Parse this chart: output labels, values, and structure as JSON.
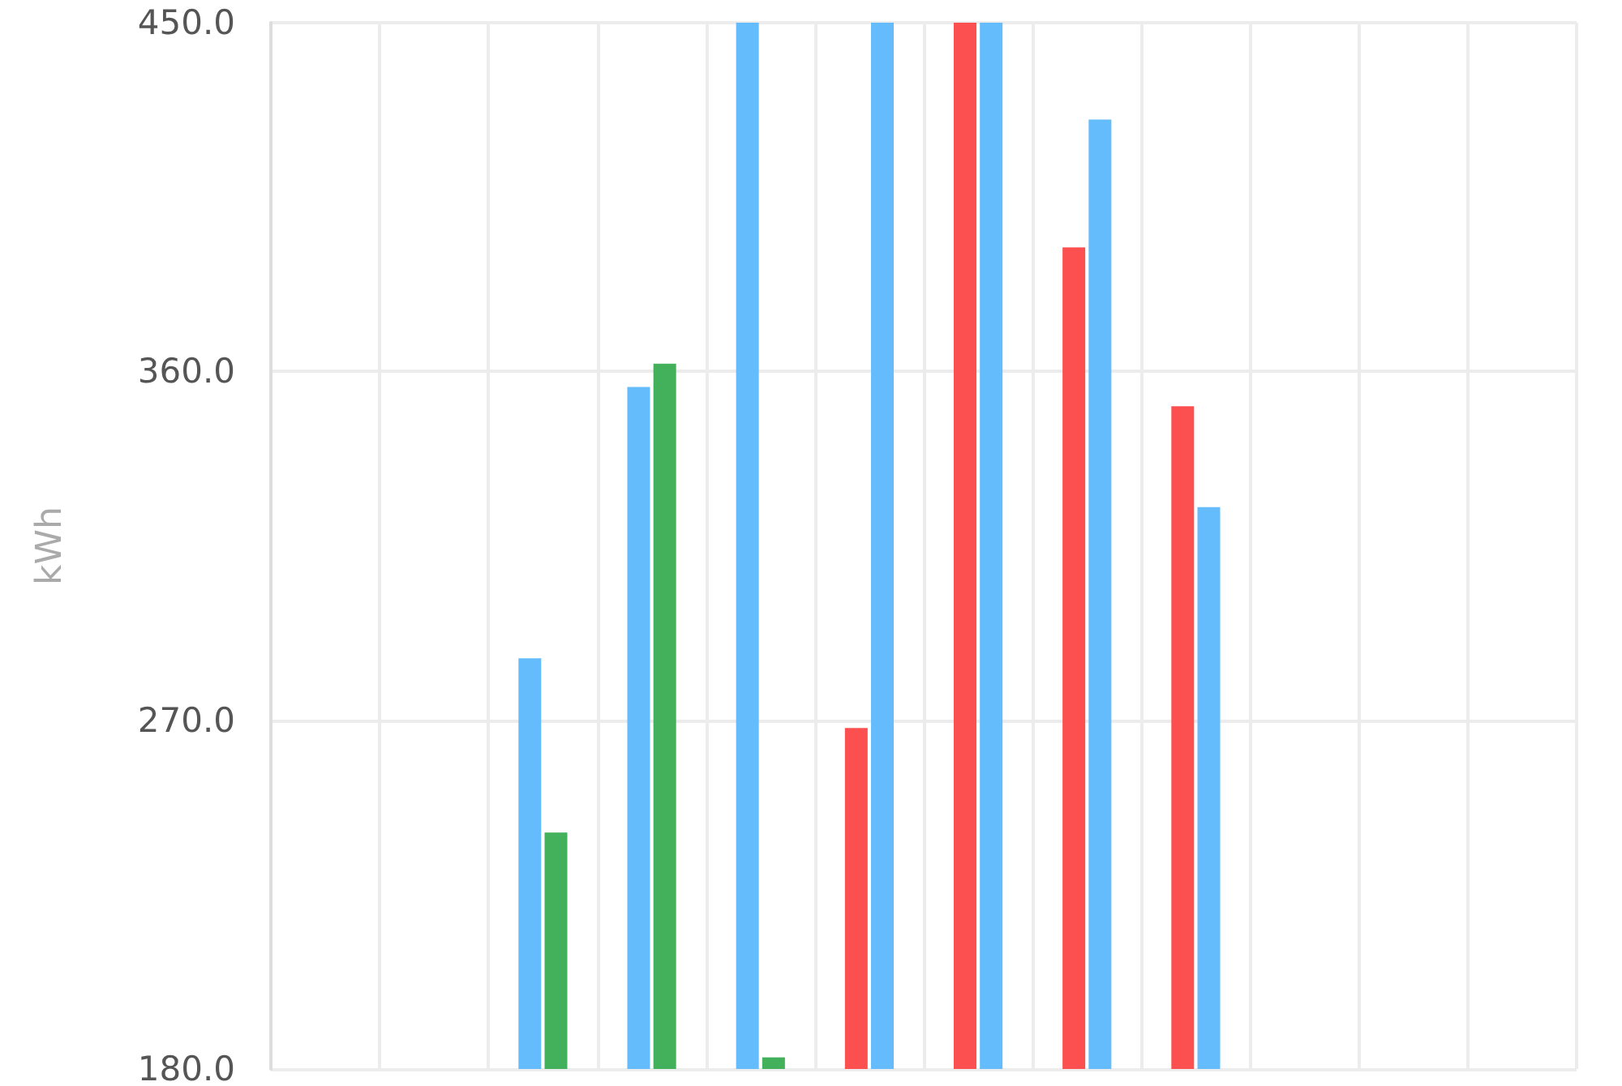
{
  "chart_data": {
    "type": "bar",
    "ylabel": "kWh",
    "categories": [
      null,
      null,
      null,
      null,
      null,
      null,
      null,
      null,
      null,
      null,
      null,
      null
    ],
    "series": [
      {
        "colors": [
          "#64bcfc",
          "#64bcfc",
          "#64bcfc",
          "#64bcfc",
          "#64bcfc",
          "#fc5050",
          "#fc5050",
          "#fc5050",
          "#fc5050",
          "#64bcfc",
          "#64bcfc",
          "#64bcfc"
        ],
        "values": [
          null,
          null,
          286,
          356,
          450,
          268,
          450,
          392,
          351,
          null,
          null,
          null
        ]
      },
      {
        "colors": [
          "#43b05c",
          "#43b05c",
          "#43b05c",
          "#43b05c",
          "#43b05c",
          "#64bcfc",
          "#64bcfc",
          "#64bcfc",
          "#64bcfc",
          "#43b05c",
          "#43b05c",
          "#43b05c"
        ],
        "values": [
          null,
          null,
          241,
          362,
          183,
          450,
          450,
          425,
          325,
          null,
          null,
          null
        ]
      }
    ],
    "ylim": [
      180,
      450
    ],
    "yticks": [
      {
        "value": 180,
        "label": "180.0"
      },
      {
        "value": 270,
        "label": "270.0"
      },
      {
        "value": 360,
        "label": "360.0"
      },
      {
        "value": 450,
        "label": "450.0"
      }
    ],
    "grid": true,
    "tick_labels": "y"
  }
}
